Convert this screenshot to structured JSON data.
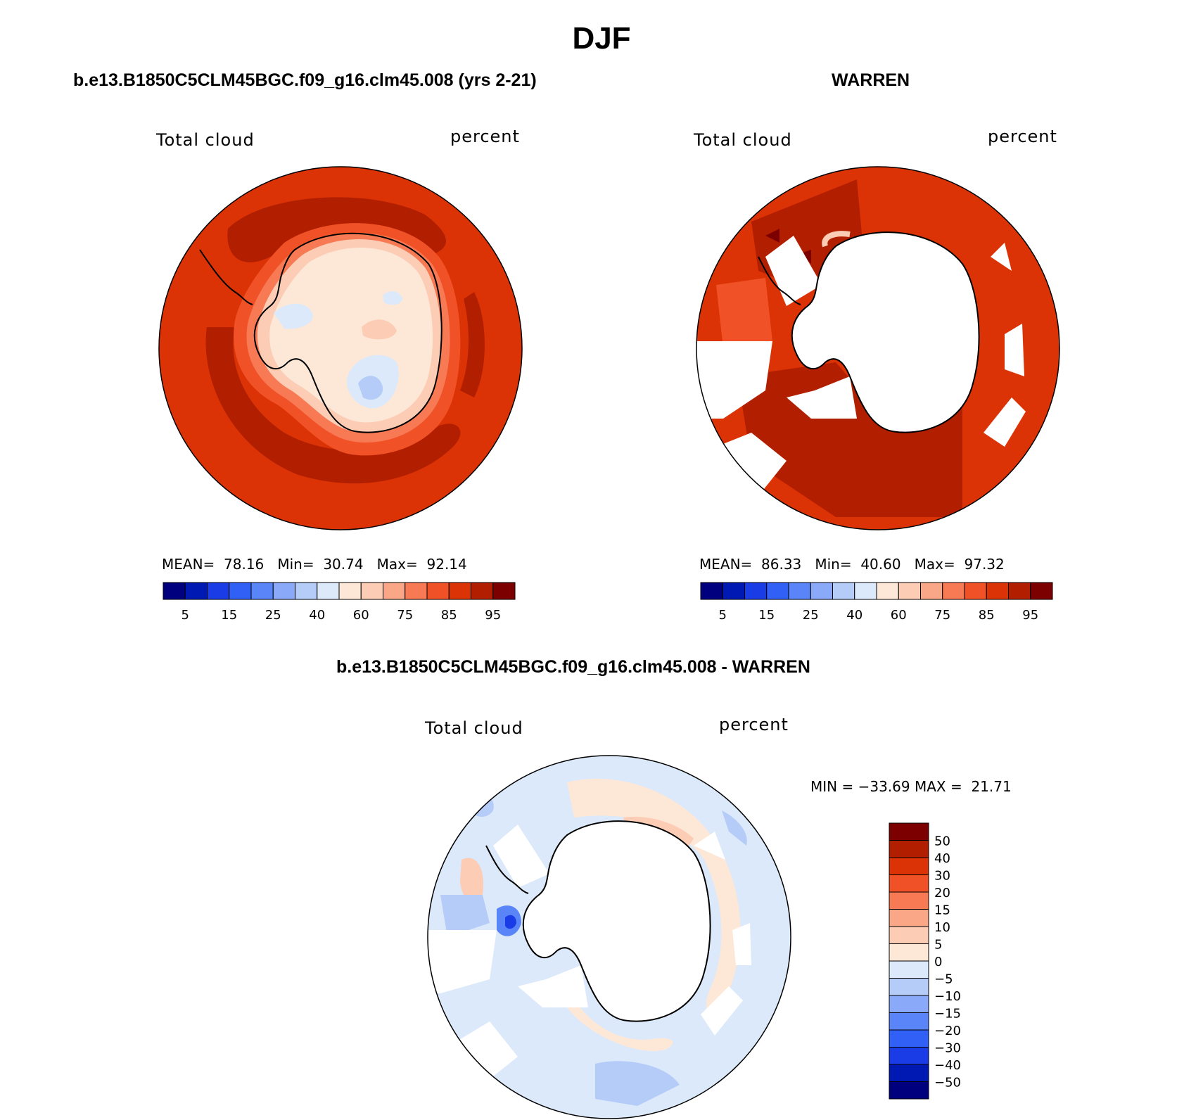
{
  "title": "DJF",
  "colors": {
    "abs_palette": [
      "#00007f",
      "#0019b3",
      "#1a3ce6",
      "#3060f6",
      "#5a85f8",
      "#8aa9f8",
      "#b5ccf8",
      "#dbe9fa",
      "#fde8d8",
      "#fcccb4",
      "#f9a787",
      "#f87a55",
      "#f05126",
      "#dc3306",
      "#b21f00",
      "#7d0000"
    ],
    "diff_palette": [
      "#00007f",
      "#0019b3",
      "#1a3ce6",
      "#3060f6",
      "#5a85f8",
      "#8aa9f8",
      "#b5ccf8",
      "#dbe9fa",
      "#fde8d8",
      "#fcccb4",
      "#f9a787",
      "#f87a55",
      "#f05126",
      "#dc3306",
      "#b21f00",
      "#7d0000"
    ]
  },
  "panels": [
    {
      "id": "model",
      "title": "b.e13.B1850C5CLM45BGC.f09_g16.clm45.008 (yrs 2-21)",
      "variable": "Total cloud",
      "units": "percent",
      "stats": {
        "mean_label": "MEAN=",
        "mean": "78.16",
        "min_label": "Min=",
        "min": "30.74",
        "max_label": "Max=",
        "max": "92.14"
      },
      "colorbar_labels": [
        "5",
        "15",
        "25",
        "40",
        "60",
        "75",
        "85",
        "95"
      ]
    },
    {
      "id": "obs",
      "title": "WARREN",
      "variable": "Total cloud",
      "units": "percent",
      "stats": {
        "mean_label": "MEAN=",
        "mean": "86.33",
        "min_label": "Min=",
        "min": "40.60",
        "max_label": "Max=",
        "max": "97.32"
      },
      "colorbar_labels": [
        "5",
        "15",
        "25",
        "40",
        "60",
        "75",
        "85",
        "95"
      ]
    },
    {
      "id": "diff",
      "title": "b.e13.B1850C5CLM45BGC.f09_g16.clm45.008 - WARREN",
      "variable": "Total cloud",
      "units": "percent",
      "stats": {
        "min_label": "MIN =",
        "min": "−33.69",
        "max_label": "MAX =",
        "max": "21.71"
      },
      "colorbar_labels": [
        "50",
        "40",
        "30",
        "20",
        "15",
        "10",
        "5",
        "0",
        "−5",
        "−10",
        "−15",
        "−20",
        "−30",
        "−40",
        "−50"
      ]
    }
  ]
}
